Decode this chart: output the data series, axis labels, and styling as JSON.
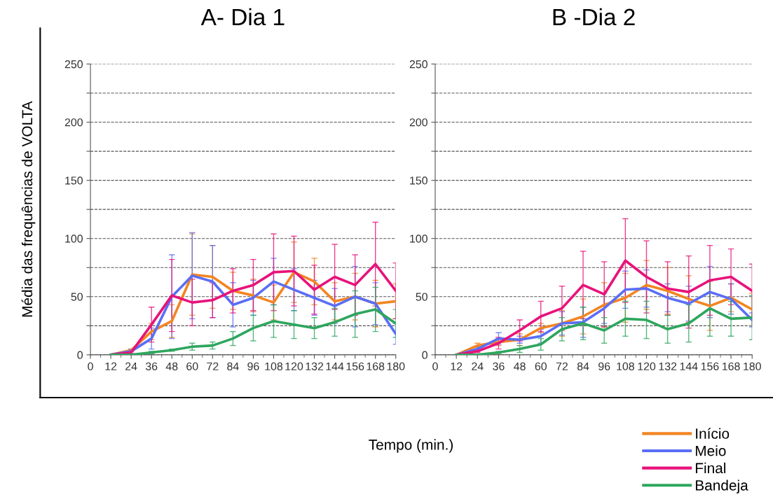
{
  "chart_data": [
    {
      "type": "line",
      "title": "A- Dia 1",
      "legend": "bottom right",
      "xlabel": "Tempo (min.)",
      "ylabel": "Média das frequências de VOLTA",
      "x": [
        12,
        24,
        36,
        48,
        60,
        72,
        84,
        96,
        108,
        120,
        132,
        144,
        156,
        168,
        180
      ],
      "xlim": [
        0,
        180
      ],
      "xticks": [
        0,
        12,
        24,
        36,
        48,
        60,
        72,
        84,
        96,
        108,
        120,
        132,
        144,
        156,
        168,
        180
      ],
      "ylim": [
        0,
        250
      ],
      "yticks": [
        0,
        {
          "value": 25,
          "label": null
        },
        50,
        {
          "value": 75,
          "label": null
        },
        100,
        {
          "value": 125,
          "label": null
        },
        150,
        {
          "value": 175,
          "label": null
        },
        200,
        {
          "value": 225,
          "label": null
        },
        250
      ],
      "grid": "y",
      "marker": "none",
      "line_style": "solid",
      "series": [
        {
          "name": "Início",
          "color": "#f28522",
          "values": [
            0,
            4,
            20,
            29,
            69,
            67,
            55,
            51,
            45,
            71,
            63,
            46,
            50,
            44,
            46
          ],
          "errors": [
            null,
            1,
            7,
            14,
            35,
            27,
            16,
            14,
            15,
            26,
            20,
            16,
            20,
            20,
            15
          ]
        },
        {
          "name": "Meio",
          "color": "#5a6ef5",
          "values": [
            0,
            3,
            14,
            50,
            68,
            63,
            43,
            49,
            63,
            56,
            49,
            42,
            50,
            44,
            18
          ],
          "errors": [
            null,
            2,
            9,
            36,
            37,
            31,
            19,
            15,
            20,
            18,
            15,
            15,
            26,
            18,
            9
          ]
        },
        {
          "name": "Final",
          "color": "#e8127a",
          "values": [
            0,
            2,
            26,
            51,
            45,
            47,
            55,
            60,
            71,
            72,
            56,
            67,
            60,
            78,
            55
          ],
          "errors": [
            null,
            1,
            15,
            31,
            20,
            15,
            19,
            22,
            33,
            30,
            21,
            28,
            26,
            36,
            24
          ]
        },
        {
          "name": "Bandeja",
          "color": "#2ea65e",
          "values": [
            0,
            0,
            2,
            4,
            7,
            8,
            14,
            23,
            29,
            26,
            23,
            28,
            35,
            39,
            27
          ],
          "errors": [
            null,
            null,
            1,
            1,
            3,
            3,
            6,
            11,
            14,
            12,
            9,
            12,
            20,
            19,
            12
          ]
        }
      ]
    },
    {
      "type": "line",
      "title": "B -Dia 2",
      "x": [
        12,
        24,
        36,
        48,
        60,
        72,
        84,
        96,
        108,
        120,
        132,
        144,
        156,
        168,
        180
      ],
      "xlim": [
        0,
        180
      ],
      "xticks": [
        0,
        12,
        24,
        36,
        48,
        60,
        72,
        84,
        96,
        108,
        120,
        132,
        144,
        156,
        168,
        180
      ],
      "ylim": [
        0,
        250
      ],
      "yticks": [
        0,
        {
          "value": 25,
          "label": null
        },
        50,
        {
          "value": 75,
          "label": null
        },
        100,
        {
          "value": 125,
          "label": null
        },
        150,
        {
          "value": 175,
          "label": null
        },
        200,
        {
          "value": 225,
          "label": null
        },
        250
      ],
      "grid": "y",
      "marker": "none",
      "line_style": "solid",
      "series": [
        {
          "color": "#f28522",
          "values": [
            0,
            8,
            11,
            13,
            23,
            27,
            33,
            43,
            49,
            60,
            55,
            48,
            42,
            49,
            39
          ],
          "errors": [
            null,
            2,
            3,
            5,
            4,
            11,
            15,
            19,
            21,
            21,
            20,
            20,
            21,
            12,
            14
          ]
        },
        {
          "color": "#5a6ef5",
          "values": [
            0,
            5,
            14,
            13,
            16,
            27,
            28,
            40,
            56,
            57,
            49,
            44,
            54,
            48,
            30
          ],
          "errors": [
            null,
            2,
            5,
            3,
            6,
            10,
            13,
            13,
            16,
            16,
            12,
            15,
            22,
            13,
            6
          ]
        },
        {
          "color": "#e8127a",
          "values": [
            0,
            3,
            10,
            21,
            33,
            40,
            60,
            52,
            81,
            67,
            57,
            54,
            64,
            67,
            55
          ],
          "errors": [
            null,
            1,
            5,
            9,
            13,
            19,
            29,
            28,
            36,
            31,
            23,
            31,
            30,
            24,
            23
          ]
        },
        {
          "color": "#2ea65e",
          "values": [
            0,
            0,
            2,
            5,
            9,
            22,
            27,
            21,
            31,
            30,
            22,
            27,
            40,
            31,
            32
          ],
          "errors": [
            null,
            null,
            1,
            3,
            5,
            10,
            14,
            11,
            15,
            16,
            12,
            16,
            24,
            15,
            19
          ]
        }
      ]
    }
  ]
}
